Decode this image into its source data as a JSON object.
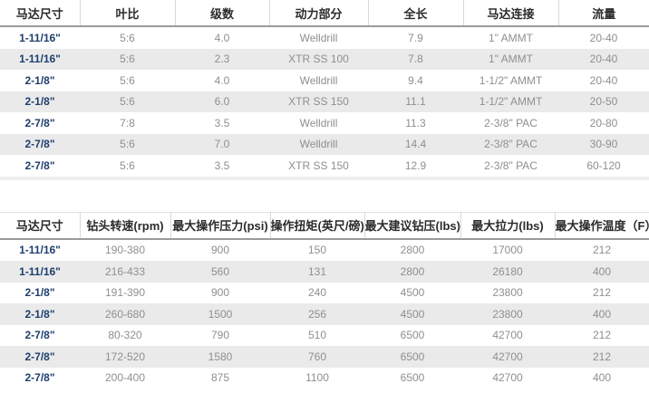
{
  "colors": {
    "header_text": "#2b2b2b",
    "motor_size_text": "#1d3e6d",
    "data_text": "#8f8f8f",
    "zebra_row_bg": "#eaeaea",
    "header_divider": "#d9d9d9",
    "header_underline": "#9b9b9b"
  },
  "table1": {
    "headers": [
      "马达尺寸",
      "叶比",
      "级数",
      "动力部分",
      "全长",
      "马达连接",
      "流量"
    ],
    "rows": [
      [
        "1-11/16\"",
        "5:6",
        "4.0",
        "Welldrill",
        "7.9",
        "1\" AMMT",
        "20-40"
      ],
      [
        "1-11/16\"",
        "5:6",
        "2.3",
        "XTR SS 100",
        "7.8",
        "1\" AMMT",
        "20-40"
      ],
      [
        "2-1/8\"",
        "5:6",
        "4.0",
        "Welldrill",
        "9.4",
        "1-1/2\" AMMT",
        "20-40"
      ],
      [
        "2-1/8\"",
        "5:6",
        "6.0",
        "XTR SS 150",
        "11.1",
        "1-1/2\" AMMT",
        "20-50"
      ],
      [
        "2-7/8\"",
        "7:8",
        "3.5",
        "Welldrill",
        "11.3",
        "2-3/8\" PAC",
        "20-80"
      ],
      [
        "2-7/8\"",
        "5:6",
        "7.0",
        "Welldrill",
        "14.4",
        "2-3/8\" PAC",
        "30-90"
      ],
      [
        "2-7/8\"",
        "5:6",
        "3.5",
        "XTR SS 150",
        "12.9",
        "2-3/8\" PAC",
        "60-120"
      ]
    ]
  },
  "table2": {
    "headers": [
      "马达尺寸",
      "钻头转速(rpm)",
      "最大操作压力(psi)",
      "操作扭矩(英尺/磅)",
      "最大建议钻压(lbs)",
      "最大拉力(lbs)",
      "最大操作温度（F）"
    ],
    "rows": [
      [
        "1-11/16\"",
        "190-380",
        "900",
        "150",
        "2800",
        "17000",
        "212"
      ],
      [
        "1-11/16\"",
        "216-433",
        "560",
        "131",
        "2800",
        "26180",
        "400"
      ],
      [
        "2-1/8\"",
        "191-390",
        "900",
        "240",
        "4500",
        "23800",
        "212"
      ],
      [
        "2-1/8\"",
        "260-680",
        "1500",
        "256",
        "4500",
        "23800",
        "400"
      ],
      [
        "2-7/8\"",
        "80-320",
        "790",
        "510",
        "6500",
        "42700",
        "212"
      ],
      [
        "2-7/8\"",
        "172-520",
        "1580",
        "760",
        "6500",
        "42700",
        "212"
      ],
      [
        "2-7/8\"",
        "200-400",
        "875",
        "1100",
        "6500",
        "42700",
        "400"
      ]
    ]
  }
}
